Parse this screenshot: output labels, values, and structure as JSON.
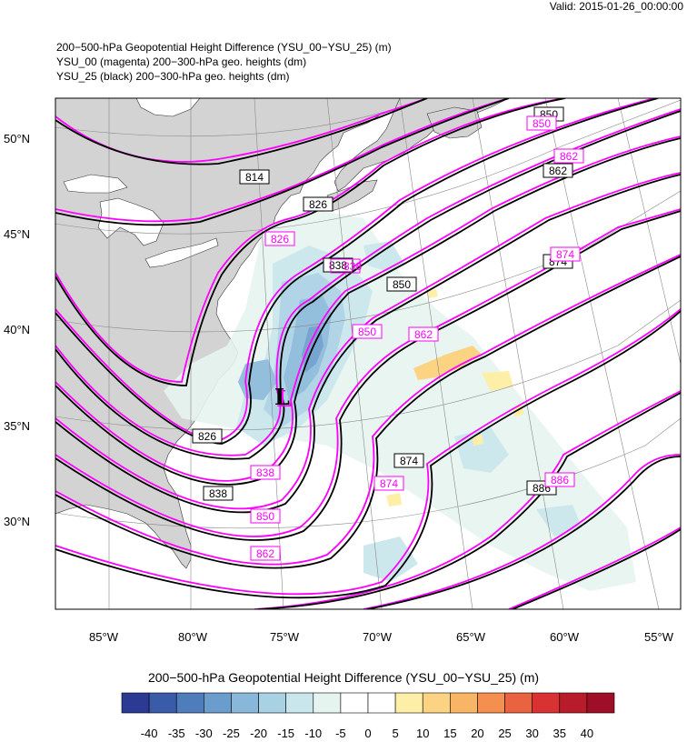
{
  "valid": "Valid: 2015-01-26_00:00:00",
  "titles": [
    "200−500-hPa Geopotential Height Difference (YSU_00−YSU_25)   (m)",
    "YSU_00 (magenta) 200−300-hPa geo. heights   (dm)",
    "YSU_25 (black) 200−300-hPa geo. heights   (dm)"
  ],
  "lat_labels": [
    "50°N",
    "45°N",
    "40°N",
    "35°N",
    "30°N"
  ],
  "lon_labels": [
    "85°W",
    "80°W",
    "75°W",
    "70°W",
    "65°W",
    "60°W",
    "55°W"
  ],
  "contour_labels_black": [
    "814",
    "826",
    "838",
    "850",
    "862",
    "874",
    "826",
    "838",
    "874",
    "886",
    "850"
  ],
  "contour_labels_magenta": [
    "826",
    "838",
    "850",
    "862",
    "874",
    "838",
    "850",
    "862",
    "874",
    "886",
    "862",
    "850"
  ],
  "low_marker": "L",
  "colorbar": {
    "title": "200−500-hPa Geopotential Height Difference (YSU_00−YSU_25)  (m)",
    "ticks": [
      "-40",
      "-35",
      "-30",
      "-25",
      "-20",
      "-15",
      "-10",
      "-5",
      "0",
      "5",
      "10",
      "15",
      "20",
      "25",
      "30",
      "35",
      "40"
    ],
    "colors": [
      "#2c3a93",
      "#3a5ba8",
      "#4f7cbb",
      "#6a9ccc",
      "#88b7d9",
      "#a9d1e4",
      "#c8e6ec",
      "#e6f4ef",
      "#ffffff",
      "#ffffff",
      "#fdefa8",
      "#fcd383",
      "#f9b566",
      "#f48f4f",
      "#ea6340",
      "#d93232",
      "#b81c2b",
      "#9e0f27"
    ]
  },
  "colors": {
    "black_contour": "#000000",
    "magenta_contour": "#ff00ff",
    "land": "#d3d3d3",
    "ocean": "#ffffff"
  }
}
